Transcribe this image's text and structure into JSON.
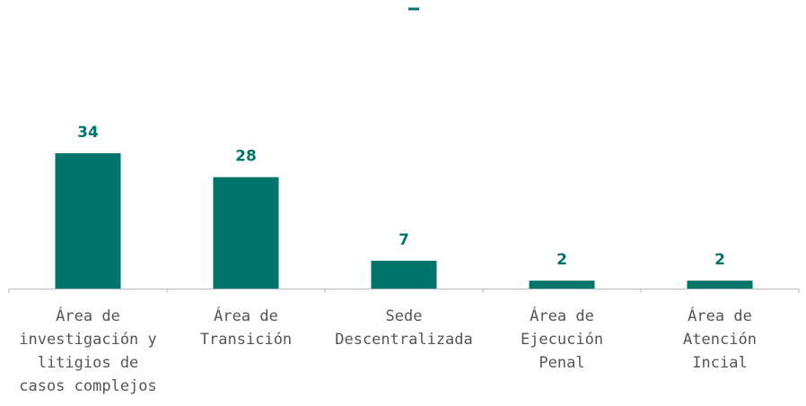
{
  "chart_data": {
    "type": "bar",
    "categories": [
      "Área de\ninvestigación y\nlitigios de\ncasos complejos",
      "Área de\nTransición",
      "Sede\nDescentralizada",
      "Área de\nEjecución\nPenal",
      "Área de\nAtención\nIncial"
    ],
    "values": [
      34,
      28,
      7,
      2,
      2
    ],
    "color": "#00766a"
  }
}
